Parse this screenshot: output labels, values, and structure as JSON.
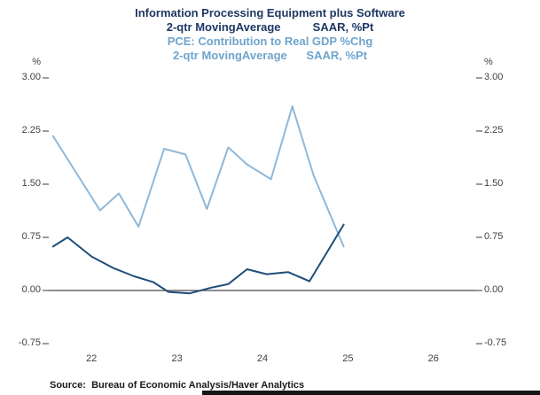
{
  "title": {
    "line1": "Information Processing Equipment plus Software",
    "line2": "2-qtr MovingAverage          SAAR, %Pt",
    "line3": "PCE: Contribution to Real GDP %Chg",
    "line4": "2-qtr MovingAverage      SAAR, %Pt"
  },
  "source": "Source:  Bureau of Economic Analysis/Haver Analytics",
  "colors": {
    "title_dark": "#1F3864",
    "title_light": "#6FA4CC",
    "dark_series": "#1F4E79",
    "light_series": "#8FB8D8",
    "axis_text": "#404040",
    "zero_line": "#4A4A4A",
    "tick": "#595959"
  },
  "chart_data": {
    "type": "line",
    "title": "Information Processing Equipment plus Software 2-qtr MovingAverage SAAR, %Pt",
    "subtitle": "PCE: Contribution to Real GDP %Chg 2-qtr MovingAverage SAAR, %Pt",
    "grid": false,
    "legend_position": "title-colored-lines",
    "x_axis": {
      "ticks": [
        "22",
        "23",
        "24",
        "25",
        "26"
      ],
      "tick_values": [
        22,
        23,
        24,
        25,
        26
      ],
      "range": [
        21.5,
        26.5
      ]
    },
    "y_axis": {
      "label": "%",
      "ticks": [
        "3.00",
        "2.25",
        "1.50",
        "0.75",
        "0.00",
        "-0.75"
      ],
      "tick_values": [
        3.0,
        2.25,
        1.5,
        0.75,
        0.0,
        -0.75
      ],
      "range": [
        -0.75,
        3.0
      ],
      "mirrored_right": true
    },
    "series": [
      {
        "id": "equipment-software",
        "name": "Information Processing Equipment plus Software 2-qtr MovingAverage SAAR, %Pt",
        "color": "#1F4E79",
        "x": [
          21.55,
          21.72,
          22.0,
          22.25,
          22.5,
          22.72,
          22.9,
          23.15,
          23.4,
          23.6,
          23.82,
          24.05,
          24.3,
          24.55,
          24.95
        ],
        "y": [
          0.62,
          0.75,
          0.48,
          0.32,
          0.2,
          0.12,
          -0.02,
          -0.04,
          0.04,
          0.09,
          0.3,
          0.23,
          0.26,
          0.13,
          0.93
        ]
      },
      {
        "id": "pce-contribution",
        "name": "PCE: Contribution to Real GDP %Chg 2-qtr MovingAverage SAAR, %Pt",
        "color": "#8FB8D8",
        "x": [
          21.55,
          22.1,
          22.32,
          22.55,
          22.85,
          23.1,
          23.35,
          23.6,
          23.82,
          24.1,
          24.35,
          24.6,
          24.95
        ],
        "y": [
          2.18,
          1.13,
          1.37,
          0.9,
          2.0,
          1.92,
          1.15,
          2.02,
          1.78,
          1.57,
          2.6,
          1.62,
          0.62
        ]
      }
    ]
  }
}
